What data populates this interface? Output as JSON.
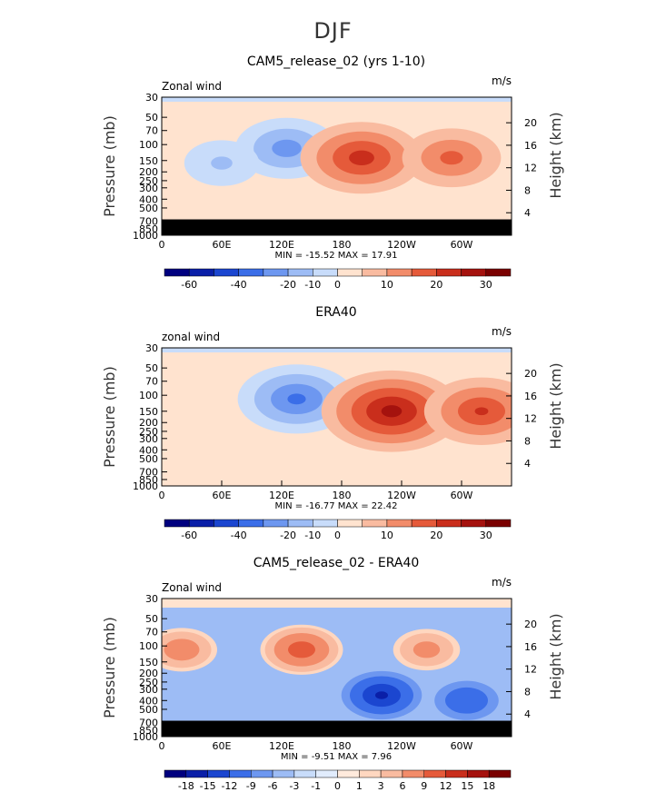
{
  "figure_title": "DJF",
  "chart_data": [
    {
      "type": "heatmap",
      "title": "CAM5_release_02 (yrs 1-10)",
      "left_label": "Zonal wind",
      "units": "m/s",
      "ylabel": "Pressure (mb)",
      "ylabel_right": "Height (km)",
      "yticks": [
        "30",
        "50",
        "70",
        "100",
        "150",
        "200",
        "250",
        "300",
        "400",
        "500",
        "700",
        "850",
        "1000"
      ],
      "yticks_right": [
        "20",
        "16",
        "12",
        "8",
        "4"
      ],
      "xticks": [
        "0",
        "60E",
        "120E",
        "180",
        "120W",
        "60W"
      ],
      "stats": "MIN = -15.52   MAX =  17.91",
      "colorbar_labels": [
        "-60",
        "-40",
        "-20",
        "-10",
        "0",
        "10",
        "20",
        "30"
      ],
      "features": [
        {
          "lon": 125,
          "p": 110,
          "value": -13
        },
        {
          "lon": 60,
          "p": 160,
          "value": -6
        },
        {
          "lon": 200,
          "p": 140,
          "value": 17.91
        },
        {
          "lon": 290,
          "p": 140,
          "value": 12
        }
      ]
    },
    {
      "type": "heatmap",
      "title": "ERA40",
      "left_label": "zonal wind",
      "units": "m/s",
      "ylabel": "Pressure (mb)",
      "ylabel_right": "Height (km)",
      "yticks": [
        "30",
        "50",
        "70",
        "100",
        "150",
        "200",
        "250",
        "300",
        "400",
        "500",
        "700",
        "850",
        "1000"
      ],
      "yticks_right": [
        "20",
        "16",
        "12",
        "8",
        "4"
      ],
      "xticks": [
        "0",
        "60E",
        "120E",
        "180",
        "120W",
        "60W"
      ],
      "stats": "MIN = -16.77   MAX =  22.42",
      "colorbar_labels": [
        "-60",
        "-40",
        "-20",
        "-10",
        "0",
        "10",
        "20",
        "30"
      ],
      "features": [
        {
          "lon": 135,
          "p": 110,
          "value": -16.77
        },
        {
          "lon": 230,
          "p": 150,
          "value": 22.42
        },
        {
          "lon": 320,
          "p": 150,
          "value": 16
        }
      ]
    },
    {
      "type": "heatmap",
      "title": "CAM5_release_02 - ERA40",
      "left_label": "Zonal wind",
      "units": "m/s",
      "ylabel": "Pressure (mb)",
      "ylabel_right": "Height (km)",
      "yticks": [
        "30",
        "50",
        "70",
        "100",
        "150",
        "200",
        "250",
        "300",
        "400",
        "500",
        "700",
        "850",
        "1000"
      ],
      "yticks_right": [
        "20",
        "16",
        "12",
        "8",
        "4"
      ],
      "xticks": [
        "0",
        "60E",
        "120E",
        "180",
        "120W",
        "60W"
      ],
      "stats": "MIN =  -9.51   MAX =   7.96",
      "colorbar_labels": [
        "-18",
        "-15",
        "-12",
        "-9",
        "-6",
        "-3",
        "-1",
        "0",
        "1",
        "3",
        "6",
        "9",
        "12",
        "15",
        "18"
      ],
      "features": [
        {
          "lon": 140,
          "p": 110,
          "value": 7.96
        },
        {
          "lon": 20,
          "p": 110,
          "value": 5
        },
        {
          "lon": 265,
          "p": 110,
          "value": 4
        },
        {
          "lon": 220,
          "p": 350,
          "value": -9.51
        },
        {
          "lon": 305,
          "p": 400,
          "value": -6
        }
      ]
    }
  ],
  "colors": {
    "bar12": [
      "#00007f",
      "#0a1fa8",
      "#1b46d0",
      "#3b6ee8",
      "#6d97f0",
      "#9dbcf5",
      "#c8dcfa",
      "#ffe3cf",
      "#f9bba0",
      "#f28c6a",
      "#e55a3a",
      "#c92e1c",
      "#a5120e",
      "#7a0000"
    ],
    "bar16": [
      "#00007f",
      "#0a1fa8",
      "#1b46d0",
      "#3b6ee8",
      "#6d97f0",
      "#9dbcf5",
      "#c8dcfa",
      "#e1ecfc",
      "#ffeadc",
      "#ffd7c0",
      "#f9bba0",
      "#f28c6a",
      "#e55a3a",
      "#c92e1c",
      "#a5120e",
      "#7a0000"
    ],
    "mask": "#000000"
  }
}
